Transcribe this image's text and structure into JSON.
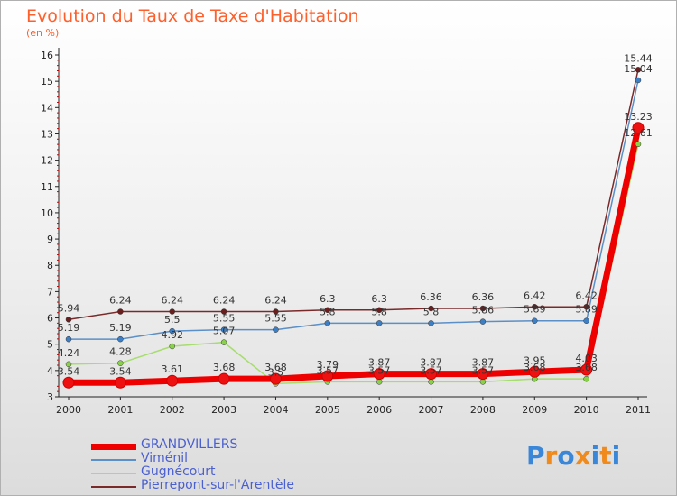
{
  "page": {
    "title": "Evolution du Taux de Taxe d'Habitation",
    "subtitle": "(en %)"
  },
  "chart_data": {
    "type": "line",
    "title": "Evolution du Taux de Taxe d'Habitation",
    "ylabel": "(en %)",
    "xlabel": "",
    "x": [
      "2000",
      "2001",
      "2002",
      "2003",
      "2004",
      "2005",
      "2006",
      "2007",
      "2008",
      "2009",
      "2010",
      "2011"
    ],
    "ylim": [
      3,
      16
    ],
    "yticks": [
      3,
      4,
      5,
      6,
      7,
      8,
      9,
      10,
      11,
      12,
      13,
      14,
      15,
      16
    ],
    "series": [
      {
        "name": "Pierrepont-sur-l'Arentèle",
        "color": "#7a2a2a",
        "marker": "#6b1e1e",
        "width": 1.5,
        "values": [
          5.94,
          6.24,
          6.24,
          6.24,
          6.24,
          6.3,
          6.3,
          6.36,
          6.36,
          6.42,
          6.42,
          15.44
        ],
        "labels": [
          "5.94",
          "6.24",
          "6.24",
          "6.24",
          "6.24",
          "6.3",
          "6.3",
          "6.36",
          "6.36",
          "6.42",
          "6.42",
          "15.44"
        ]
      },
      {
        "name": "Viménil",
        "color": "#5b8fc7",
        "marker": "#3d7fc4",
        "width": 1.5,
        "values": [
          5.19,
          5.19,
          5.5,
          5.55,
          5.55,
          5.8,
          5.8,
          5.8,
          5.86,
          5.89,
          5.89,
          15.04
        ],
        "labels": [
          "5.19",
          "5.19",
          "5.5",
          "5.55",
          "5.55",
          "5.8",
          "5.8",
          "5.8",
          "5.86",
          "5.89",
          "5.89",
          "15.04"
        ]
      },
      {
        "name": "Gugnécourt",
        "color": "#a6dd6e",
        "marker": "#8ad14a",
        "width": 1.5,
        "values": [
          4.24,
          4.28,
          4.92,
          5.07,
          3.5,
          3.57,
          3.57,
          3.57,
          3.57,
          3.68,
          3.68,
          12.61
        ],
        "labels": [
          "4.24",
          "4.28",
          "4.92",
          "5.07",
          "3.5",
          "3.57",
          "3.57",
          "3.57",
          "3.57",
          "3.68",
          "3.68",
          "12.61"
        ]
      },
      {
        "name": "GRANDVILLERS",
        "color": "#ee0000",
        "marker": "#ee1111",
        "width": 7,
        "values": [
          3.54,
          3.54,
          3.61,
          3.68,
          3.68,
          3.79,
          3.87,
          3.87,
          3.87,
          3.95,
          4.03,
          13.23
        ],
        "labels": [
          "3.54",
          "3.54",
          "3.61",
          "3.68",
          "3.68",
          "3.79",
          "3.87",
          "3.87",
          "3.87",
          "3.95",
          "4.03",
          "13.23"
        ]
      }
    ]
  },
  "legend": {
    "items": [
      {
        "label": "GRANDVILLERS",
        "color": "#ee0000",
        "width": 7
      },
      {
        "label": "Viménil",
        "color": "#5b8fc7",
        "width": 2
      },
      {
        "label": "Gugnécourt",
        "color": "#a6dd6e",
        "width": 2
      },
      {
        "label": "Pierrepont-sur-l'Arentèle",
        "color": "#7a2a2a",
        "width": 2
      }
    ]
  },
  "logo": {
    "letters": [
      "P",
      "r",
      "o",
      "x",
      "i",
      "t",
      "i"
    ],
    "colors": [
      "#3a86d9",
      "#f08a1c",
      "#3a86d9",
      "#f08a1c",
      "#3a86d9",
      "#f08a1c",
      "#3a86d9"
    ]
  }
}
